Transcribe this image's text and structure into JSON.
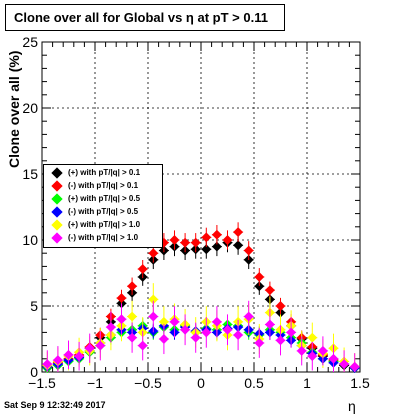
{
  "chart_data": {
    "type": "scatter",
    "title": "Clone  over all for Global vs  η at pT > 0.11",
    "xlabel": "η",
    "ylabel": "Clone  over all (%)",
    "xlim": [
      -1.5,
      1.5
    ],
    "ylim": [
      0,
      25
    ],
    "x_ticks": [
      "−1.5",
      "−1",
      "−0.5",
      "0",
      "0.5",
      "1",
      "1.5"
    ],
    "y_ticks": [
      "0",
      "5",
      "10",
      "15",
      "20",
      "25"
    ],
    "grid": true,
    "legend_position": "middle-left",
    "series": [
      {
        "name": "(+) with pT/|q| > 0.1",
        "color": "#000000",
        "x": [
          -1.45,
          -1.35,
          -1.25,
          -1.15,
          -1.05,
          -0.95,
          -0.85,
          -0.75,
          -0.65,
          -0.55,
          -0.45,
          -0.35,
          -0.25,
          -0.15,
          -0.05,
          0.05,
          0.15,
          0.25,
          0.35,
          0.45,
          0.55,
          0.65,
          0.75,
          0.85,
          0.95,
          1.05,
          1.15,
          1.25,
          1.35,
          1.45
        ],
        "y": [
          0.3,
          0.6,
          0.9,
          1.2,
          1.8,
          2.6,
          3.8,
          5.2,
          6.0,
          7.2,
          8.5,
          9.2,
          9.5,
          9.2,
          9.3,
          9.3,
          9.5,
          9.8,
          9.6,
          8.5,
          6.5,
          5.5,
          4.5,
          3.5,
          2.5,
          1.8,
          1.2,
          0.8,
          0.5,
          0.3
        ]
      },
      {
        "name": "(-) with pT/|q| > 0.1",
        "color": "#ff0000",
        "x": [
          -1.45,
          -1.35,
          -1.25,
          -1.15,
          -1.05,
          -0.95,
          -0.85,
          -0.75,
          -0.65,
          -0.55,
          -0.45,
          -0.35,
          -0.25,
          -0.15,
          -0.05,
          0.05,
          0.15,
          0.25,
          0.35,
          0.45,
          0.55,
          0.65,
          0.75,
          0.85,
          0.95,
          1.05,
          1.15,
          1.25,
          1.35,
          1.45
        ],
        "y": [
          0.4,
          0.7,
          1.0,
          1.3,
          1.9,
          2.8,
          4.2,
          5.6,
          6.5,
          7.8,
          9.0,
          9.8,
          10.0,
          9.8,
          9.8,
          10.2,
          10.4,
          10.0,
          10.6,
          9.2,
          7.2,
          6.2,
          5.0,
          3.8,
          2.6,
          1.9,
          1.3,
          0.9,
          0.6,
          0.3
        ]
      },
      {
        "name": "(+) with pT/|q| > 0.5",
        "color": "#00ff00",
        "x": [
          -1.45,
          -1.35,
          -1.25,
          -1.15,
          -1.05,
          -0.95,
          -0.85,
          -0.75,
          -0.65,
          -0.55,
          -0.45,
          -0.35,
          -0.25,
          -0.15,
          -0.05,
          0.05,
          0.15,
          0.25,
          0.35,
          0.45,
          0.55,
          0.65,
          0.75,
          0.85,
          0.95,
          1.05,
          1.15,
          1.25,
          1.35,
          1.45
        ],
        "y": [
          0.3,
          0.5,
          0.8,
          1.0,
          1.5,
          2.0,
          2.6,
          3.0,
          3.2,
          3.5,
          3.0,
          3.4,
          3.2,
          3.5,
          3.0,
          3.3,
          3.2,
          3.6,
          3.5,
          3.0,
          2.8,
          3.2,
          3.0,
          2.6,
          2.2,
          1.5,
          1.0,
          0.8,
          0.6,
          0.3
        ]
      },
      {
        "name": "(-) with pT/|q| > 0.5",
        "color": "#0000ff",
        "x": [
          -1.45,
          -1.35,
          -1.25,
          -1.15,
          -1.05,
          -0.95,
          -0.85,
          -0.75,
          -0.65,
          -0.55,
          -0.45,
          -0.35,
          -0.25,
          -0.15,
          -0.05,
          0.05,
          0.15,
          0.25,
          0.35,
          0.45,
          0.55,
          0.65,
          0.75,
          0.85,
          0.95,
          1.05,
          1.15,
          1.25,
          1.35,
          1.45
        ],
        "y": [
          0.4,
          0.6,
          0.9,
          1.1,
          1.6,
          2.2,
          2.8,
          3.2,
          3.0,
          3.3,
          3.1,
          3.5,
          3.0,
          3.4,
          3.1,
          3.2,
          3.0,
          3.3,
          3.4,
          3.2,
          2.9,
          3.0,
          2.8,
          2.4,
          2.0,
          1.4,
          1.0,
          0.7,
          0.6,
          0.3
        ]
      },
      {
        "name": "(+) with pT/|q| > 1.0",
        "color": "#ffff00",
        "x": [
          -1.45,
          -1.35,
          -1.25,
          -1.15,
          -1.05,
          -0.95,
          -0.85,
          -0.75,
          -0.65,
          -0.55,
          -0.45,
          -0.35,
          -0.25,
          -0.15,
          -0.05,
          0.05,
          0.15,
          0.25,
          0.35,
          0.45,
          0.55,
          0.65,
          0.75,
          0.85,
          0.95,
          1.05,
          1.15,
          1.25,
          1.35,
          1.45
        ],
        "y": [
          0.5,
          0.8,
          1.2,
          1.5,
          1.6,
          2.2,
          2.8,
          3.5,
          4.2,
          3.0,
          5.5,
          3.8,
          4.0,
          3.6,
          3.0,
          3.8,
          3.5,
          2.8,
          3.8,
          4.0,
          2.5,
          4.5,
          3.2,
          3.5,
          2.0,
          2.6,
          1.4,
          1.8,
          0.8,
          0.4
        ]
      },
      {
        "name": "(-) with pT/|q| > 1.0",
        "color": "#ff00ff",
        "x": [
          -1.45,
          -1.35,
          -1.25,
          -1.15,
          -1.05,
          -0.95,
          -0.85,
          -0.75,
          -0.65,
          -0.55,
          -0.45,
          -0.35,
          -0.25,
          -0.15,
          -0.05,
          0.05,
          0.15,
          0.25,
          0.35,
          0.45,
          0.55,
          0.65,
          0.75,
          0.85,
          0.95,
          1.05,
          1.15,
          1.25,
          1.35,
          1.45
        ],
        "y": [
          0.6,
          0.9,
          1.3,
          1.2,
          1.8,
          2.0,
          3.4,
          4.0,
          2.6,
          2.0,
          4.2,
          2.5,
          3.8,
          3.2,
          2.6,
          3.0,
          3.8,
          3.2,
          2.8,
          4.2,
          2.2,
          3.6,
          2.4,
          3.0,
          1.6,
          1.2,
          1.6,
          1.0,
          0.6,
          0.4
        ]
      }
    ]
  },
  "footer": {
    "timestamp": "Sat Sep  9 12:32:49 2017"
  }
}
